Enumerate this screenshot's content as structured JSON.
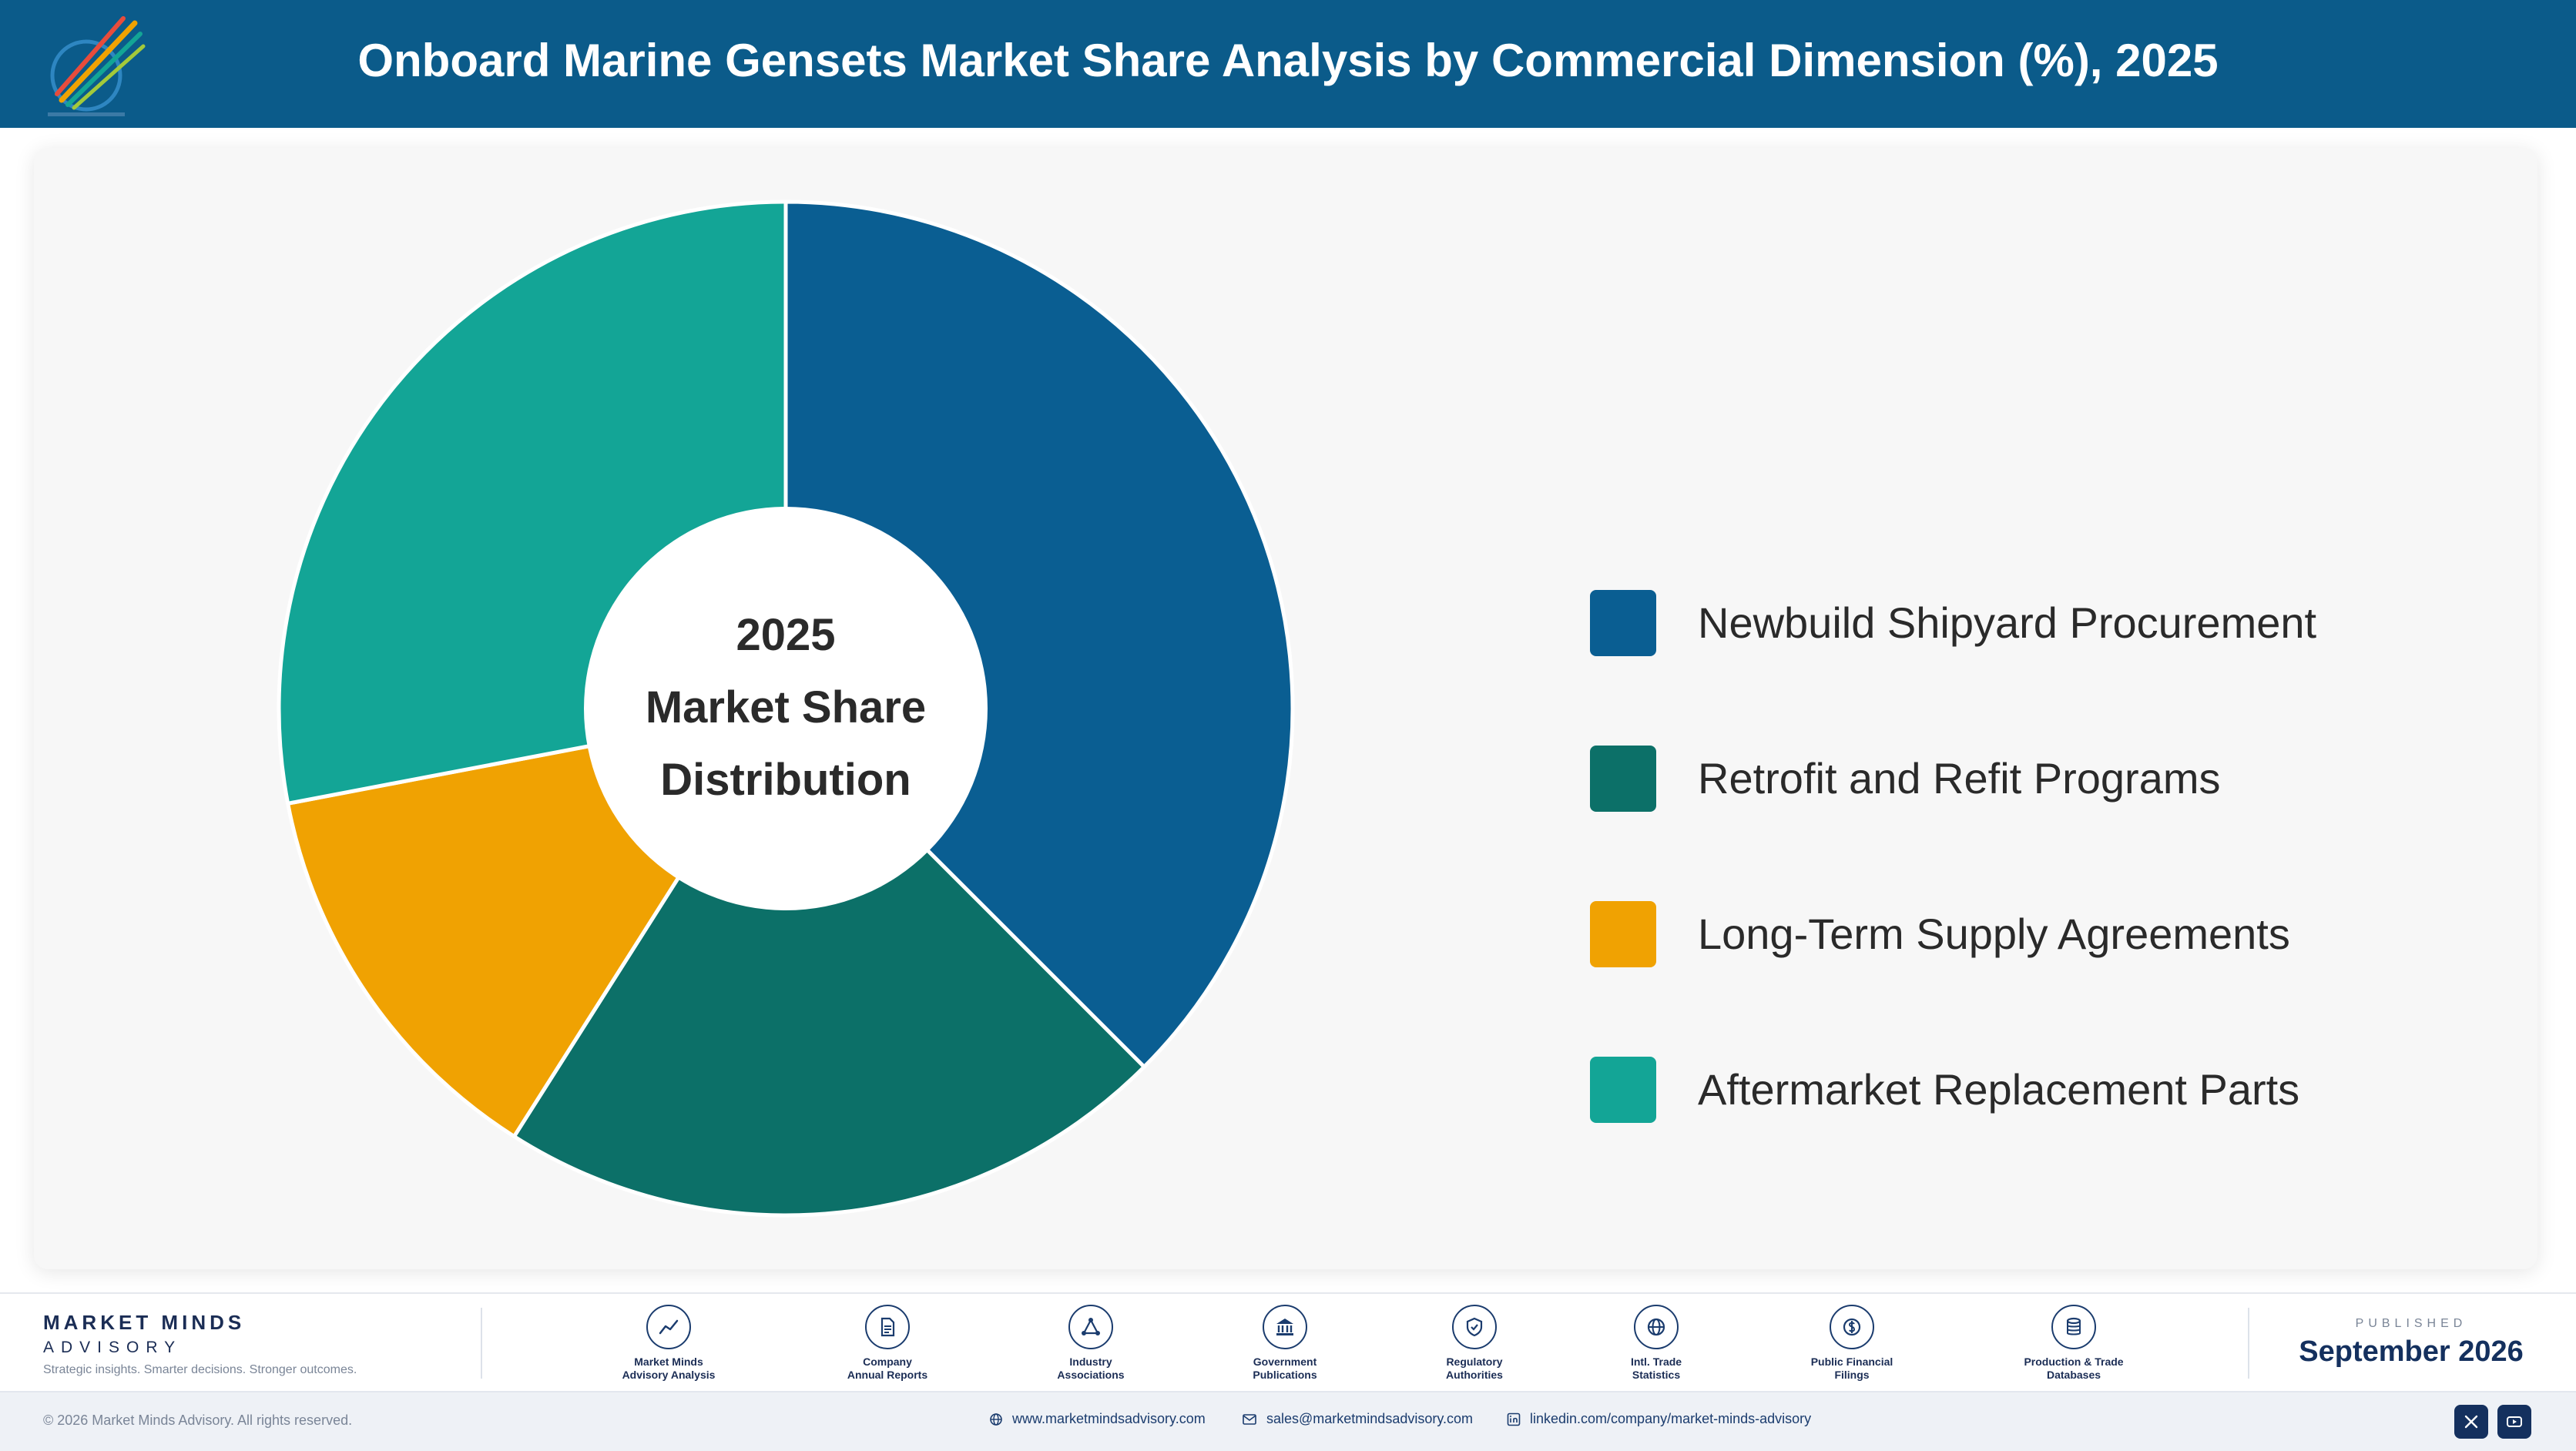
{
  "header": {
    "title": "Onboard Marine Gensets Market Share Analysis by Commercial Dimension (%), 2025",
    "logo_icon": "market-minds-logo-icon"
  },
  "center_label": {
    "line1": "2025",
    "line2": "Market Share",
    "line3": "Distribution"
  },
  "chart_data": {
    "type": "pie",
    "variant": "donut",
    "start_angle_deg": 0,
    "direction": "clockwise",
    "legend_position": "right",
    "slices": [
      {
        "label": "Newbuild Shipyard Procurement",
        "value": 37.5,
        "color": "#0a5e92"
      },
      {
        "label": "Retrofit and Refit Programs",
        "value": 21.5,
        "color": "#0c7068"
      },
      {
        "label": "Long-Term Supply Agreements",
        "value": 13.0,
        "color": "#f0a202"
      },
      {
        "label": "Aftermarket Replacement Parts",
        "value": 28.0,
        "color": "#13a596"
      }
    ]
  },
  "footer": {
    "brand_name": "MARKET MINDS",
    "brand_sub": "ADVISORY",
    "tagline": "Strategic insights. Smarter decisions. Stronger outcomes.",
    "sources": [
      {
        "line1": "Market Minds",
        "line2": "Advisory Analysis",
        "icon": "trend-line-icon"
      },
      {
        "line1": "Company",
        "line2": "Annual Reports",
        "icon": "document-icon"
      },
      {
        "line1": "Industry",
        "line2": "Associations",
        "icon": "network-icon"
      },
      {
        "line1": "Government",
        "line2": "Publications",
        "icon": "government-building-icon"
      },
      {
        "line1": "Regulatory",
        "line2": "Authorities",
        "icon": "shield-check-icon"
      },
      {
        "line1": "Intl. Trade",
        "line2": "Statistics",
        "icon": "globe-icon"
      },
      {
        "line1": "Public Financial",
        "line2": "Filings",
        "icon": "currency-icon"
      },
      {
        "line1": "Production & Trade",
        "line2": "Databases",
        "icon": "database-icon"
      }
    ],
    "published_label": "PUBLISHED",
    "published_date": "September 2026"
  },
  "bottom_bar": {
    "copyright": "© 2026 Market Minds Advisory. All rights reserved.",
    "website": "www.marketmindsadvisory.com",
    "email": "sales@marketmindsadvisory.com",
    "linkedin": "linkedin.com/company/market-minds-advisory",
    "social_icons": [
      "x-icon",
      "youtube-icon"
    ]
  }
}
